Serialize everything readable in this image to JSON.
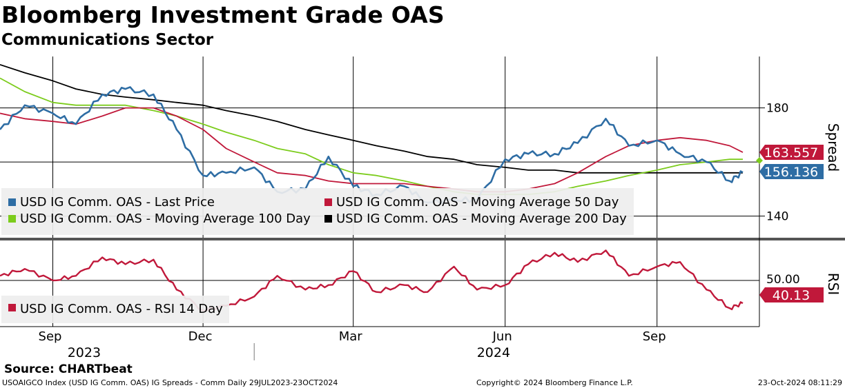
{
  "header": {
    "title": "Bloomberg Investment Grade OAS",
    "subtitle": "Communications Sector"
  },
  "footer": {
    "source": "Source: CHARTbeat",
    "index_info": "USOAIGCO Index (USD IG Comm. OAS) IG Spreads - Comm  Daily 29JUL2023-23OCT2024",
    "copyright": "Copyright© 2024 Bloomberg Finance L.P.",
    "timestamp": "23-Oct-2024 08:11:29"
  },
  "colors": {
    "last_price": "#2e6da4",
    "ma50": "#c0183a",
    "ma100": "#7ccc1c",
    "ma200": "#000000",
    "rsi": "#c0183a"
  },
  "chart_data": [
    {
      "type": "line",
      "panel": "upper",
      "ylabel": "Spread",
      "ylim": [
        132,
        199
      ],
      "yticks": [
        140,
        180
      ],
      "grid": true,
      "legend_position": "bottom-left",
      "x": [
        "2023-07-31",
        "2023-08-15",
        "2023-09-01",
        "2023-09-15",
        "2023-10-01",
        "2023-10-15",
        "2023-11-01",
        "2023-11-15",
        "2023-12-01",
        "2023-12-15",
        "2024-01-01",
        "2024-01-15",
        "2024-02-01",
        "2024-02-15",
        "2024-03-01",
        "2024-03-15",
        "2024-04-01",
        "2024-04-15",
        "2024-05-01",
        "2024-05-15",
        "2024-06-01",
        "2024-06-15",
        "2024-07-01",
        "2024-07-15",
        "2024-08-01",
        "2024-08-15",
        "2024-09-01",
        "2024-09-15",
        "2024-10-01",
        "2024-10-15",
        "2024-10-23"
      ],
      "series": [
        {
          "name": "USD IG Comm. OAS - Last Price",
          "last_label": "156.136",
          "values": [
            172,
            181,
            178,
            174,
            185,
            187,
            185,
            172,
            155,
            156,
            158,
            149,
            150,
            162,
            151,
            148,
            151,
            145,
            146,
            146,
            161,
            163,
            163,
            167,
            176,
            166,
            168,
            163,
            160,
            153,
            156.136
          ]
        },
        {
          "name": "USD IG Comm. OAS - Moving Average 50 Day",
          "last_label": "163.557",
          "values": [
            178,
            176,
            175,
            174,
            177,
            180,
            180,
            177,
            172,
            165,
            160,
            156,
            155,
            153,
            152,
            152,
            152,
            151,
            150,
            149,
            149,
            150,
            152,
            156,
            162,
            166,
            168,
            169,
            168,
            166,
            163.557
          ]
        },
        {
          "name": "USD IG Comm. OAS - Moving Average 100 Day",
          "values": [
            191,
            186,
            182,
            181,
            181,
            181,
            179,
            177,
            174,
            171,
            168,
            165,
            163,
            159,
            156,
            155,
            153,
            151,
            149,
            148,
            148,
            148,
            149,
            151,
            153,
            155,
            157,
            159,
            160,
            161,
            161
          ]
        },
        {
          "name": "USD IG Comm. OAS - Moving Average 200 Day",
          "values": [
            196,
            193,
            190,
            187,
            185,
            184,
            183,
            182,
            181,
            179,
            177,
            175,
            172,
            170,
            168,
            166,
            164,
            162,
            161,
            159,
            158,
            157,
            157,
            156,
            156,
            156,
            156,
            156,
            156,
            156,
            156
          ]
        }
      ]
    },
    {
      "type": "line",
      "panel": "lower",
      "ylabel": "RSI",
      "ylim": [
        30,
        67
      ],
      "yticks": [
        "50.00"
      ],
      "grid": true,
      "legend_position": "bottom-left",
      "x": [
        "2023-07-31",
        "2023-08-15",
        "2023-09-01",
        "2023-09-15",
        "2023-10-01",
        "2023-10-15",
        "2023-11-01",
        "2023-11-15",
        "2023-12-01",
        "2023-12-15",
        "2024-01-01",
        "2024-01-15",
        "2024-02-01",
        "2024-02-15",
        "2024-03-01",
        "2024-03-15",
        "2024-04-01",
        "2024-04-15",
        "2024-05-01",
        "2024-05-15",
        "2024-06-01",
        "2024-06-15",
        "2024-07-01",
        "2024-07-15",
        "2024-08-01",
        "2024-08-15",
        "2024-09-01",
        "2024-09-15",
        "2024-10-01",
        "2024-10-15",
        "2024-10-23"
      ],
      "series": [
        {
          "name": "USD IG Comm. OAS - RSI 14 Day",
          "last_label": "40.13",
          "values": [
            52,
            55,
            50,
            52,
            60,
            57,
            59,
            46,
            37,
            39,
            43,
            52,
            46,
            48,
            54,
            45,
            48,
            45,
            56,
            46,
            48,
            57,
            62,
            58,
            63,
            52,
            56,
            58,
            46,
            38,
            40.13
          ]
        }
      ]
    }
  ],
  "x_axis": {
    "month_labels": [
      {
        "label": "Sep",
        "date": "2023-09-01"
      },
      {
        "label": "Dec",
        "date": "2023-12-01"
      },
      {
        "label": "Mar",
        "date": "2024-03-01"
      },
      {
        "label": "Jun",
        "date": "2024-06-01"
      },
      {
        "label": "Sep",
        "date": "2024-09-01"
      }
    ],
    "year_labels": [
      {
        "label": "2023",
        "date": "2023-09-20"
      },
      {
        "label": "2024",
        "date": "2024-05-25"
      }
    ]
  }
}
